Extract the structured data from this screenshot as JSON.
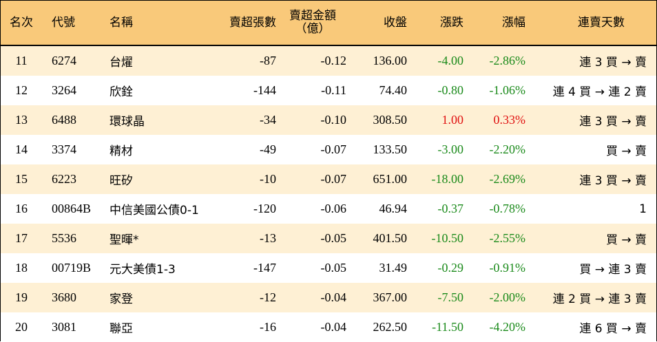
{
  "headers": {
    "rank": "名次",
    "code": "代號",
    "name": "名稱",
    "sell_lots": "賣超張數",
    "sell_amount_line1": "賣超金額",
    "sell_amount_line2": "（億）",
    "close": "收盤",
    "change": "漲跌",
    "pct": "漲幅",
    "streak": "連賣天數"
  },
  "colors": {
    "header_bg": "#f9c97a",
    "stripe_bg": "#fef0d4",
    "down": "#1a8a1a",
    "up": "#e01010"
  },
  "rows": [
    {
      "rank": "11",
      "code": "6274",
      "name": "台燿",
      "sell_lots": "-87",
      "sell_amount": "-0.12",
      "close": "136.00",
      "change": "-4.00",
      "pct": "-2.86%",
      "streak": "連 3 買 → 賣",
      "dir": "down"
    },
    {
      "rank": "12",
      "code": "3264",
      "name": "欣銓",
      "sell_lots": "-144",
      "sell_amount": "-0.11",
      "close": "74.40",
      "change": "-0.80",
      "pct": "-1.06%",
      "streak": "連 4 買 → 連 2 賣",
      "dir": "down"
    },
    {
      "rank": "13",
      "code": "6488",
      "name": "環球晶",
      "sell_lots": "-34",
      "sell_amount": "-0.10",
      "close": "308.50",
      "change": "1.00",
      "pct": "0.33%",
      "streak": "連 3 買 → 賣",
      "dir": "up"
    },
    {
      "rank": "14",
      "code": "3374",
      "name": "精材",
      "sell_lots": "-49",
      "sell_amount": "-0.07",
      "close": "133.50",
      "change": "-3.00",
      "pct": "-2.20%",
      "streak": "買 → 賣",
      "dir": "down"
    },
    {
      "rank": "15",
      "code": "6223",
      "name": "旺矽",
      "sell_lots": "-10",
      "sell_amount": "-0.07",
      "close": "651.00",
      "change": "-18.00",
      "pct": "-2.69%",
      "streak": "連 3 買 → 賣",
      "dir": "down"
    },
    {
      "rank": "16",
      "code": "00864B",
      "name": "中信美國公債0-1",
      "sell_lots": "-120",
      "sell_amount": "-0.06",
      "close": "46.94",
      "change": "-0.37",
      "pct": "-0.78%",
      "streak": "1",
      "dir": "down"
    },
    {
      "rank": "17",
      "code": "5536",
      "name": "聖暉*",
      "sell_lots": "-13",
      "sell_amount": "-0.05",
      "close": "401.50",
      "change": "-10.50",
      "pct": "-2.55%",
      "streak": "買 → 賣",
      "dir": "down"
    },
    {
      "rank": "18",
      "code": "00719B",
      "name": "元大美債1-3",
      "sell_lots": "-147",
      "sell_amount": "-0.05",
      "close": "31.49",
      "change": "-0.29",
      "pct": "-0.91%",
      "streak": "買 → 連 3 賣",
      "dir": "down"
    },
    {
      "rank": "19",
      "code": "3680",
      "name": "家登",
      "sell_lots": "-12",
      "sell_amount": "-0.04",
      "close": "367.00",
      "change": "-7.50",
      "pct": "-2.00%",
      "streak": "連 2 買 → 連 3 賣",
      "dir": "down"
    },
    {
      "rank": "20",
      "code": "3081",
      "name": "聯亞",
      "sell_lots": "-16",
      "sell_amount": "-0.04",
      "close": "262.50",
      "change": "-11.50",
      "pct": "-4.20%",
      "streak": "連 6 買 → 賣",
      "dir": "down"
    }
  ]
}
